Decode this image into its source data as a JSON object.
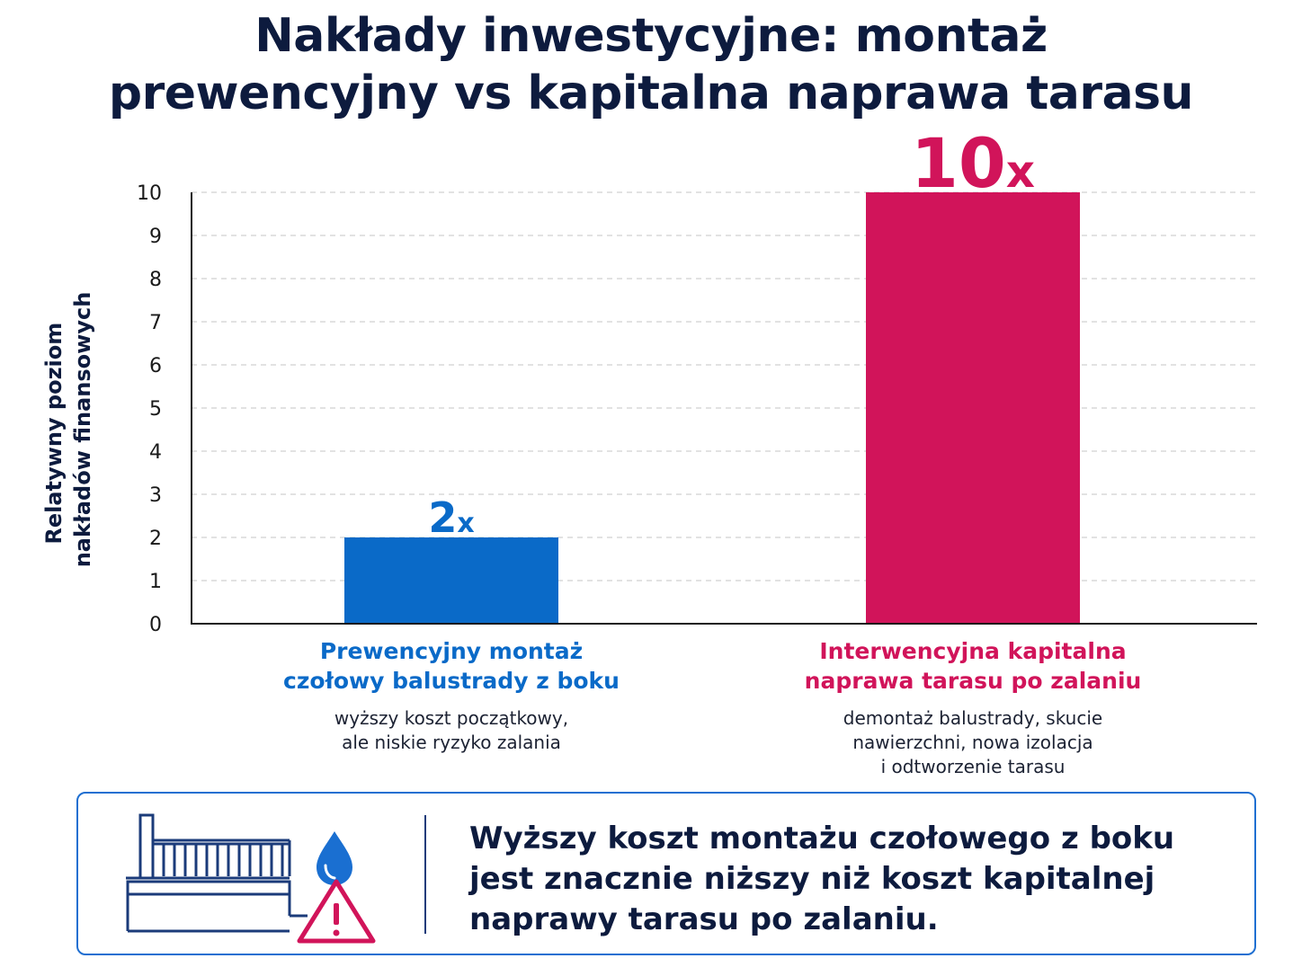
{
  "title": {
    "line1": "Nakłady inwestycyjne: montaż",
    "line2": "prewencyjny vs kapitalna naprawa tarasu"
  },
  "chart_data": {
    "type": "bar",
    "title": "Nakłady inwestycyjne: montaż prewencyjny vs kapitalna naprawa tarasu",
    "ylabel": "Relatywny poziom nakładów finansowych",
    "xlabel": "",
    "ylim": [
      0,
      10
    ],
    "yticks": [
      "0",
      "1",
      "2",
      "3",
      "4",
      "5",
      "6",
      "7",
      "8",
      "9",
      "10"
    ],
    "grid": "horizontal dashed",
    "categories": [
      "Prewencyjny montaż czołowy balustrady z boku",
      "Interwencyjna kapitalna naprawa tarasu po zalaniu"
    ],
    "values": [
      2,
      10
    ],
    "data_labels": [
      "2x",
      "10x"
    ],
    "colors": [
      "#0a6ac8",
      "#d1145a"
    ]
  },
  "axis": {
    "ylabel_line1": "Relatywny poziom",
    "ylabel_line2": "nakładów finansowych"
  },
  "categories": [
    {
      "label_line1": "Prewencyjny montaż",
      "label_line2": "czołowy balustrady z boku",
      "desc_line1": "wyższy koszt początkowy,",
      "desc_line2": "ale niskie ryzyko zalania",
      "desc_line3": ""
    },
    {
      "label_line1": "Interwencyjna kapitalna",
      "label_line2": "naprawa tarasu po zalaniu",
      "desc_line1": "demontaż balustrady, skucie",
      "desc_line2": "nawierzchni, nowa izolacja",
      "desc_line3": "i odtworzenie tarasu"
    }
  ],
  "info_box": {
    "line1": "Wyższy koszt montażu czołowego z boku",
    "line2": "jest znacznie niższy niż koszt kapitalnej",
    "line3": "naprawy tarasu po zalaniu.",
    "icons": [
      "balustrade-icon",
      "water-drop-icon",
      "warning-triangle-icon"
    ]
  },
  "colors": {
    "blue": "#0a6ac8",
    "pink": "#d1145a",
    "navy": "#0d1b3e",
    "box_border": "#1f6fd1"
  }
}
